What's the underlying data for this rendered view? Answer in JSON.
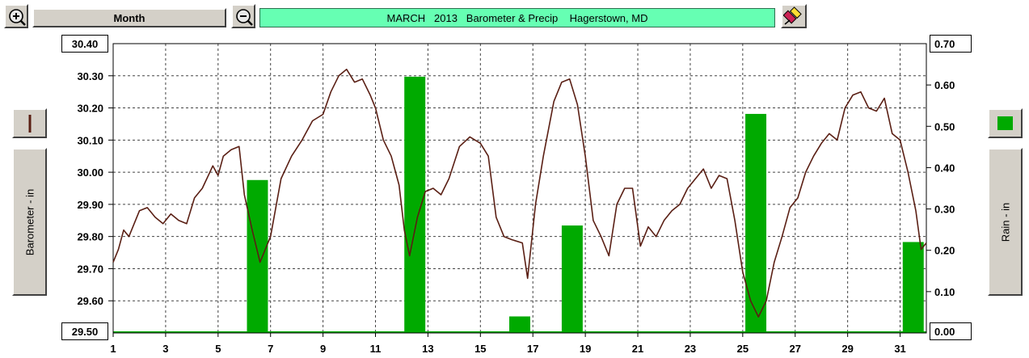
{
  "toolbar": {
    "zoom_in_icon": "zoom-in-magnifier",
    "zoom_out_icon": "zoom-out-magnifier",
    "period_label": "Month",
    "title": "MARCH   2013   Barometer & Precip    Hagerstown, MD",
    "pen_icon": "pen-eraser-icon"
  },
  "left_axis_title": "Barometer - in",
  "right_axis_title": "Rain - in",
  "colors": {
    "barometer": "#5a1f14",
    "rain": "#00aa00",
    "title_bg": "#66ffb3",
    "grid": "#444444"
  },
  "chart_data": {
    "type": "line+bar",
    "title": "MARCH   2013   Barometer & Precip    Hagerstown, MD",
    "x_range": [
      1,
      32
    ],
    "x_ticks": [
      "1",
      "3",
      "5",
      "7",
      "9",
      "11",
      "13",
      "15",
      "17",
      "19",
      "21",
      "23",
      "25",
      "27",
      "29",
      "31"
    ],
    "left_axis": {
      "label": "Barometer - in",
      "range": [
        29.5,
        30.4
      ],
      "ticks": [
        "30.40",
        "30.30",
        "30.20",
        "30.10",
        "30.00",
        "29.90",
        "29.80",
        "29.70",
        "29.60",
        "29.50"
      ]
    },
    "right_axis": {
      "label": "Rain - in",
      "range": [
        0.0,
        0.7
      ],
      "ticks": [
        "0.70",
        "0.60",
        "0.50",
        "0.40",
        "0.30",
        "0.20",
        "0.10",
        "0.00"
      ]
    },
    "grid": true,
    "series": [
      {
        "name": "Barometer",
        "type": "line",
        "axis": "left",
        "x": [
          1.0,
          1.2,
          1.4,
          1.6,
          2.0,
          2.3,
          2.6,
          2.9,
          3.2,
          3.5,
          3.8,
          4.1,
          4.4,
          4.8,
          5.0,
          5.2,
          5.5,
          5.8,
          6.0,
          6.3,
          6.6,
          7.0,
          7.4,
          7.8,
          8.2,
          8.6,
          9.0,
          9.3,
          9.6,
          9.9,
          10.2,
          10.5,
          10.8,
          11.0,
          11.3,
          11.6,
          11.9,
          12.1,
          12.3,
          12.6,
          12.9,
          13.2,
          13.5,
          13.8,
          14.2,
          14.6,
          15.0,
          15.3,
          15.6,
          15.9,
          16.2,
          16.6,
          16.8,
          17.1,
          17.4,
          17.8,
          18.1,
          18.4,
          18.7,
          19.0,
          19.3,
          19.6,
          19.9,
          20.2,
          20.5,
          20.8,
          21.1,
          21.4,
          21.7,
          22.0,
          22.3,
          22.6,
          22.9,
          23.2,
          23.5,
          23.8,
          24.1,
          24.4,
          24.7,
          25.0,
          25.3,
          25.6,
          25.9,
          26.2,
          26.5,
          26.8,
          27.1,
          27.4,
          27.7,
          28.0,
          28.3,
          28.6,
          28.9,
          29.2,
          29.5,
          29.8,
          30.1,
          30.4,
          30.7,
          31.0,
          31.3,
          31.6,
          31.8,
          32.0
        ],
        "values": [
          29.72,
          29.76,
          29.82,
          29.8,
          29.88,
          29.89,
          29.86,
          29.84,
          29.87,
          29.85,
          29.84,
          29.92,
          29.95,
          30.02,
          29.99,
          30.05,
          30.07,
          30.08,
          29.93,
          29.82,
          29.72,
          29.8,
          29.98,
          30.05,
          30.1,
          30.16,
          30.18,
          30.25,
          30.3,
          30.32,
          30.28,
          30.29,
          30.24,
          30.2,
          30.1,
          30.05,
          29.96,
          29.82,
          29.74,
          29.86,
          29.94,
          29.95,
          29.93,
          29.98,
          30.08,
          30.11,
          30.09,
          30.05,
          29.86,
          29.8,
          29.79,
          29.78,
          29.67,
          29.9,
          30.05,
          30.22,
          30.28,
          30.29,
          30.21,
          30.05,
          29.85,
          29.8,
          29.74,
          29.9,
          29.95,
          29.95,
          29.77,
          29.83,
          29.8,
          29.85,
          29.88,
          29.9,
          29.95,
          29.98,
          30.01,
          29.95,
          29.99,
          29.98,
          29.85,
          29.69,
          29.6,
          29.55,
          29.6,
          29.72,
          29.8,
          29.89,
          29.92,
          30.0,
          30.05,
          30.09,
          30.12,
          30.1,
          30.2,
          30.24,
          30.25,
          30.2,
          30.19,
          30.23,
          30.12,
          30.1,
          30.0,
          29.88,
          29.76,
          29.78
        ]
      },
      {
        "name": "Rain",
        "type": "bar",
        "axis": "right",
        "x": [
          6.5,
          12.5,
          16.5,
          18.5,
          25.5,
          31.5
        ],
        "values": [
          0.37,
          0.62,
          0.04,
          0.26,
          0.53,
          0.22
        ]
      }
    ]
  }
}
